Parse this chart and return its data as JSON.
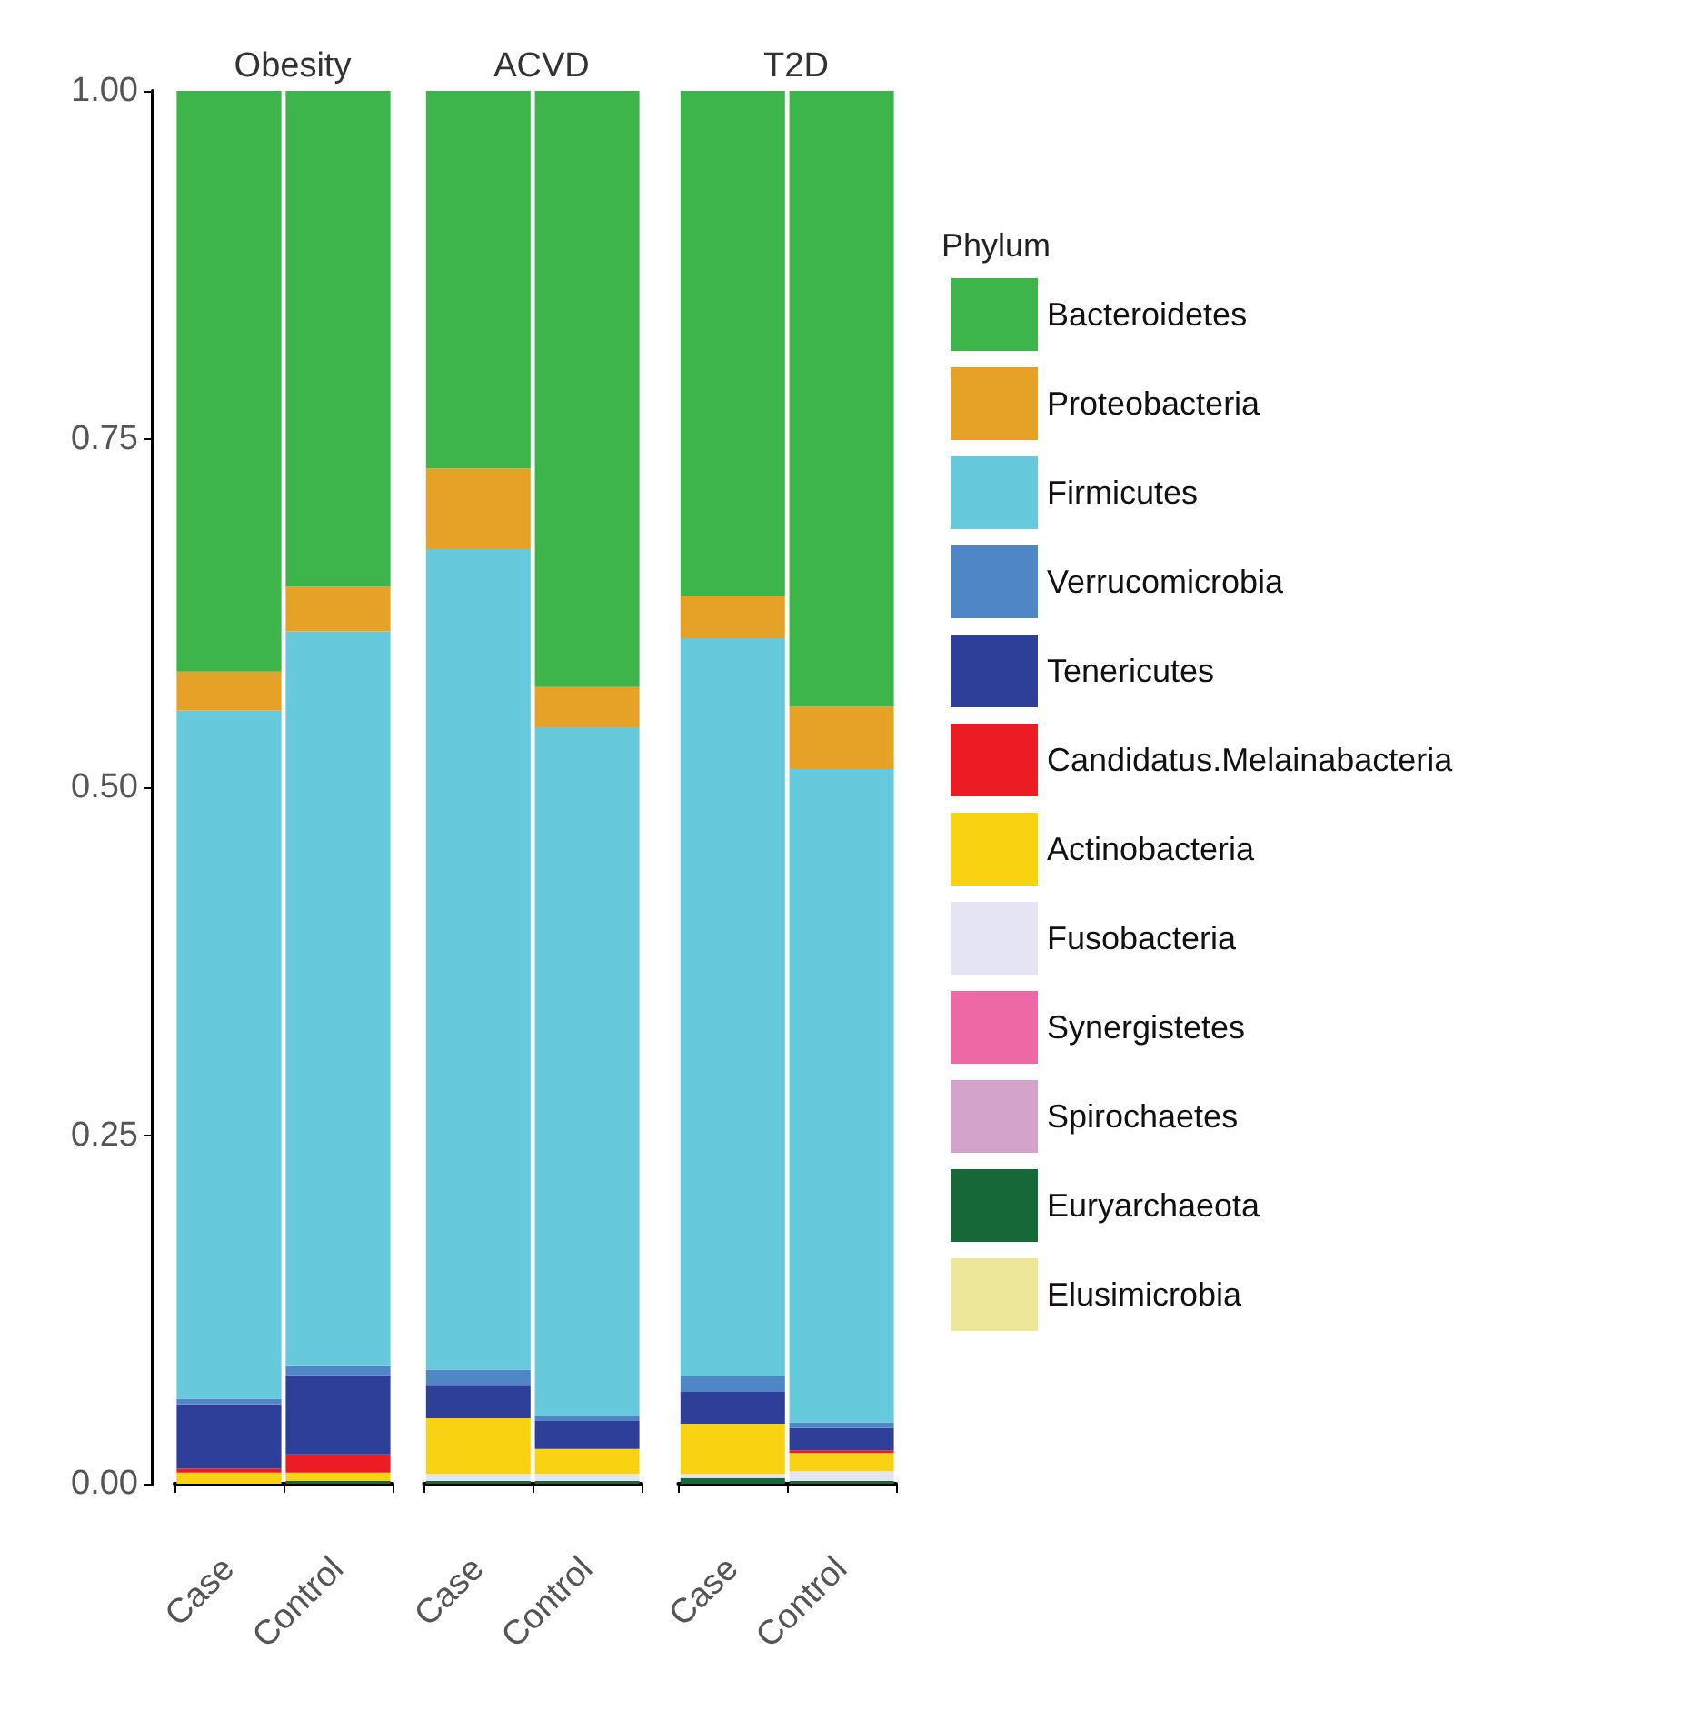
{
  "chart_data": [
    {
      "type": "bar",
      "title": "Obesity",
      "categories": [
        "Case",
        "Control"
      ],
      "stacked": true,
      "ylim": [
        0,
        1
      ],
      "yticks": [
        {
          "value": 0,
          "label": "0.00"
        },
        {
          "value": 0.25,
          "label": "0.25"
        },
        {
          "value": 0.5,
          "label": "0.50"
        },
        {
          "value": 0.75,
          "label": "0.75"
        },
        {
          "value": 1,
          "label": "1.00"
        }
      ],
      "series": [
        {
          "color": "#17693a",
          "values": [
            0,
            0.002
          ]
        },
        {
          "color": "#f9d312",
          "values": [
            0.008,
            0.006
          ]
        },
        {
          "color": "#ec1c24",
          "values": [
            0.003,
            0.013
          ]
        },
        {
          "color": "#2e3f99",
          "values": [
            0.046,
            0.057
          ]
        },
        {
          "color": "#4f86c6",
          "values": [
            0.004,
            0.007
          ]
        },
        {
          "color": "#67c9dc",
          "values": [
            0.494,
            0.527
          ]
        },
        {
          "color": "#e5a226",
          "values": [
            0.028,
            0.032
          ]
        },
        {
          "color": "#3db54a",
          "values": [
            0.417,
            0.356
          ]
        }
      ]
    },
    {
      "type": "bar",
      "title": "ACVD",
      "categories": [
        "Case",
        "Control"
      ],
      "stacked": true,
      "ylim": [
        0,
        1
      ],
      "tick_labels": "x",
      "series": [
        {
          "color": "#17693a",
          "values": [
            0.002,
            0.002
          ]
        },
        {
          "color": "#e4e4f2",
          "values": [
            0.005,
            0.005
          ]
        },
        {
          "color": "#f9d312",
          "values": [
            0.04,
            0.018
          ]
        },
        {
          "color": "#2e3f99",
          "values": [
            0.024,
            0.02
          ]
        },
        {
          "color": "#4f86c6",
          "values": [
            0.011,
            0.004
          ]
        },
        {
          "color": "#67c9dc",
          "values": [
            0.589,
            0.494
          ]
        },
        {
          "color": "#e5a226",
          "values": [
            0.058,
            0.029
          ]
        },
        {
          "color": "#3db54a",
          "values": [
            0.271,
            0.428
          ]
        }
      ]
    },
    {
      "type": "bar",
      "title": "T2D",
      "categories": [
        "Case",
        "Control"
      ],
      "stacked": true,
      "ylim": [
        0,
        1
      ],
      "tick_labels": "x",
      "legend": "right",
      "legend_title": "Phylum",
      "series": [
        {
          "name": "Elusimicrobia",
          "color": "#ede79a",
          "values": [
            0,
            0
          ]
        },
        {
          "name": "Euryarchaeota",
          "color": "#17693a",
          "values": [
            0.004,
            0.002
          ]
        },
        {
          "name": "Spirochaetes",
          "color": "#d4a3cc",
          "values": [
            0,
            0
          ]
        },
        {
          "name": "Synergistetes",
          "color": "#ee6aa7",
          "values": [
            0,
            0
          ]
        },
        {
          "name": "Fusobacteria",
          "color": "#e4e4f2",
          "values": [
            0.003,
            0.007
          ]
        },
        {
          "name": "Actinobacteria",
          "color": "#f9d312",
          "values": [
            0.036,
            0.013
          ]
        },
        {
          "name": "Candidatus.Melainabacteria",
          "color": "#ec1c24",
          "values": [
            0,
            0.002
          ]
        },
        {
          "name": "Tenericutes",
          "color": "#2e3f99",
          "values": [
            0.023,
            0.016
          ]
        },
        {
          "name": "Verrucomicrobia",
          "color": "#4f86c6",
          "values": [
            0.011,
            0.004
          ]
        },
        {
          "name": "Firmicutes",
          "color": "#67c9dc",
          "values": [
            0.53,
            0.469
          ]
        },
        {
          "name": "Proteobacteria",
          "color": "#e5a226",
          "values": [
            0.03,
            0.045
          ]
        },
        {
          "name": "Bacteroidetes",
          "color": "#3db54a",
          "values": [
            0.363,
            0.442
          ]
        }
      ]
    }
  ]
}
